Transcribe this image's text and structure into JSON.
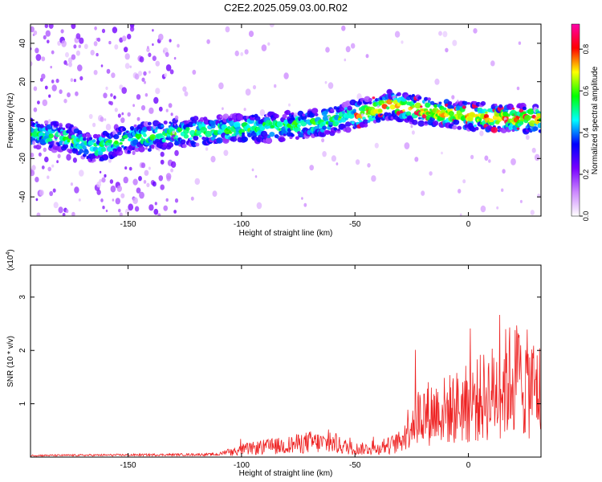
{
  "title": "C2E2.2025.059.03.00.R02",
  "chart_data": [
    {
      "type": "heatmap",
      "xlabel": "Height of straight line (km)",
      "ylabel": "Frequency (Hz)",
      "xlim": [
        -193,
        32
      ],
      "ylim": [
        -50,
        50
      ],
      "xticks": [
        -150,
        -100,
        -50,
        0
      ],
      "yticks": [
        -40,
        -20,
        0,
        20,
        40
      ],
      "grid": false,
      "ridge": {
        "x": [
          -190,
          -175,
          -165,
          -150,
          -130,
          -110,
          -90,
          -70,
          -55,
          -45,
          -35,
          -20,
          0,
          20,
          30
        ],
        "y": [
          -7,
          -10,
          -15,
          -10,
          -7,
          -5,
          -4,
          -2,
          1,
          4,
          8,
          5,
          2,
          1,
          1
        ]
      },
      "colorbar": {
        "label": "Normalized spectral amplitude",
        "ticks": [
          0.0,
          0.2,
          0.4,
          0.6,
          0.8
        ],
        "range": [
          0,
          0.92
        ],
        "colors": [
          "#ffffff",
          "#cc88ff",
          "#7700ff",
          "#0000ff",
          "#00ffff",
          "#00ff00",
          "#ffff00",
          "#ff0000",
          "#ff00aa"
        ]
      }
    },
    {
      "type": "line",
      "xlabel": "Height of straight line (km)",
      "ylabel": "SNR (10 * v/v)",
      "exponent_label": "(x10",
      "exponent_sup": "4",
      "exponent_close": ")",
      "xlim": [
        -193,
        32
      ],
      "ylim": [
        0,
        3.6
      ],
      "xticks": [
        -150,
        -100,
        -50,
        0
      ],
      "yticks": [
        1,
        2,
        3
      ],
      "line_color": "#ee2222",
      "envelope": {
        "x": [
          -193,
          -150,
          -110,
          -100,
          -90,
          -80,
          -70,
          -60,
          -50,
          -40,
          -30,
          -25,
          -20,
          -10,
          0,
          10,
          20,
          25,
          32
        ],
        "y": [
          0.03,
          0.04,
          0.05,
          0.22,
          0.3,
          0.35,
          0.45,
          0.4,
          0.25,
          0.25,
          0.45,
          1.1,
          1.3,
          1.4,
          1.6,
          1.9,
          2.4,
          2.2,
          2.0
        ]
      }
    }
  ]
}
